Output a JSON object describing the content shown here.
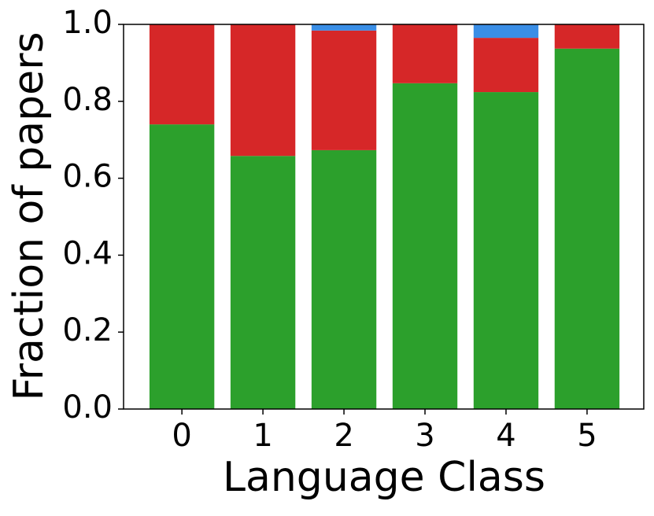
{
  "chart_data": {
    "type": "stacked_bar",
    "xlabel": "Language Class",
    "ylabel": "Fraction of papers",
    "categories": [
      "0",
      "1",
      "2",
      "3",
      "4",
      "5"
    ],
    "series": [
      {
        "color": "#2ca02c",
        "values": [
          0.74,
          0.658,
          0.673,
          0.847,
          0.824,
          0.937
        ]
      },
      {
        "color": "#d62728",
        "values": [
          0.26,
          0.342,
          0.311,
          0.153,
          0.141,
          0.063
        ]
      },
      {
        "color": "#3a8ee6",
        "values": [
          0,
          0,
          0.016,
          0,
          0.035,
          0
        ]
      }
    ],
    "ylim": [
      0,
      1
    ],
    "yticks": [
      {
        "value": 0,
        "label": "0.0"
      },
      0.2,
      0.4,
      0.6,
      0.8,
      {
        "value": 1,
        "label": "1.0"
      }
    ],
    "grid": false
  }
}
